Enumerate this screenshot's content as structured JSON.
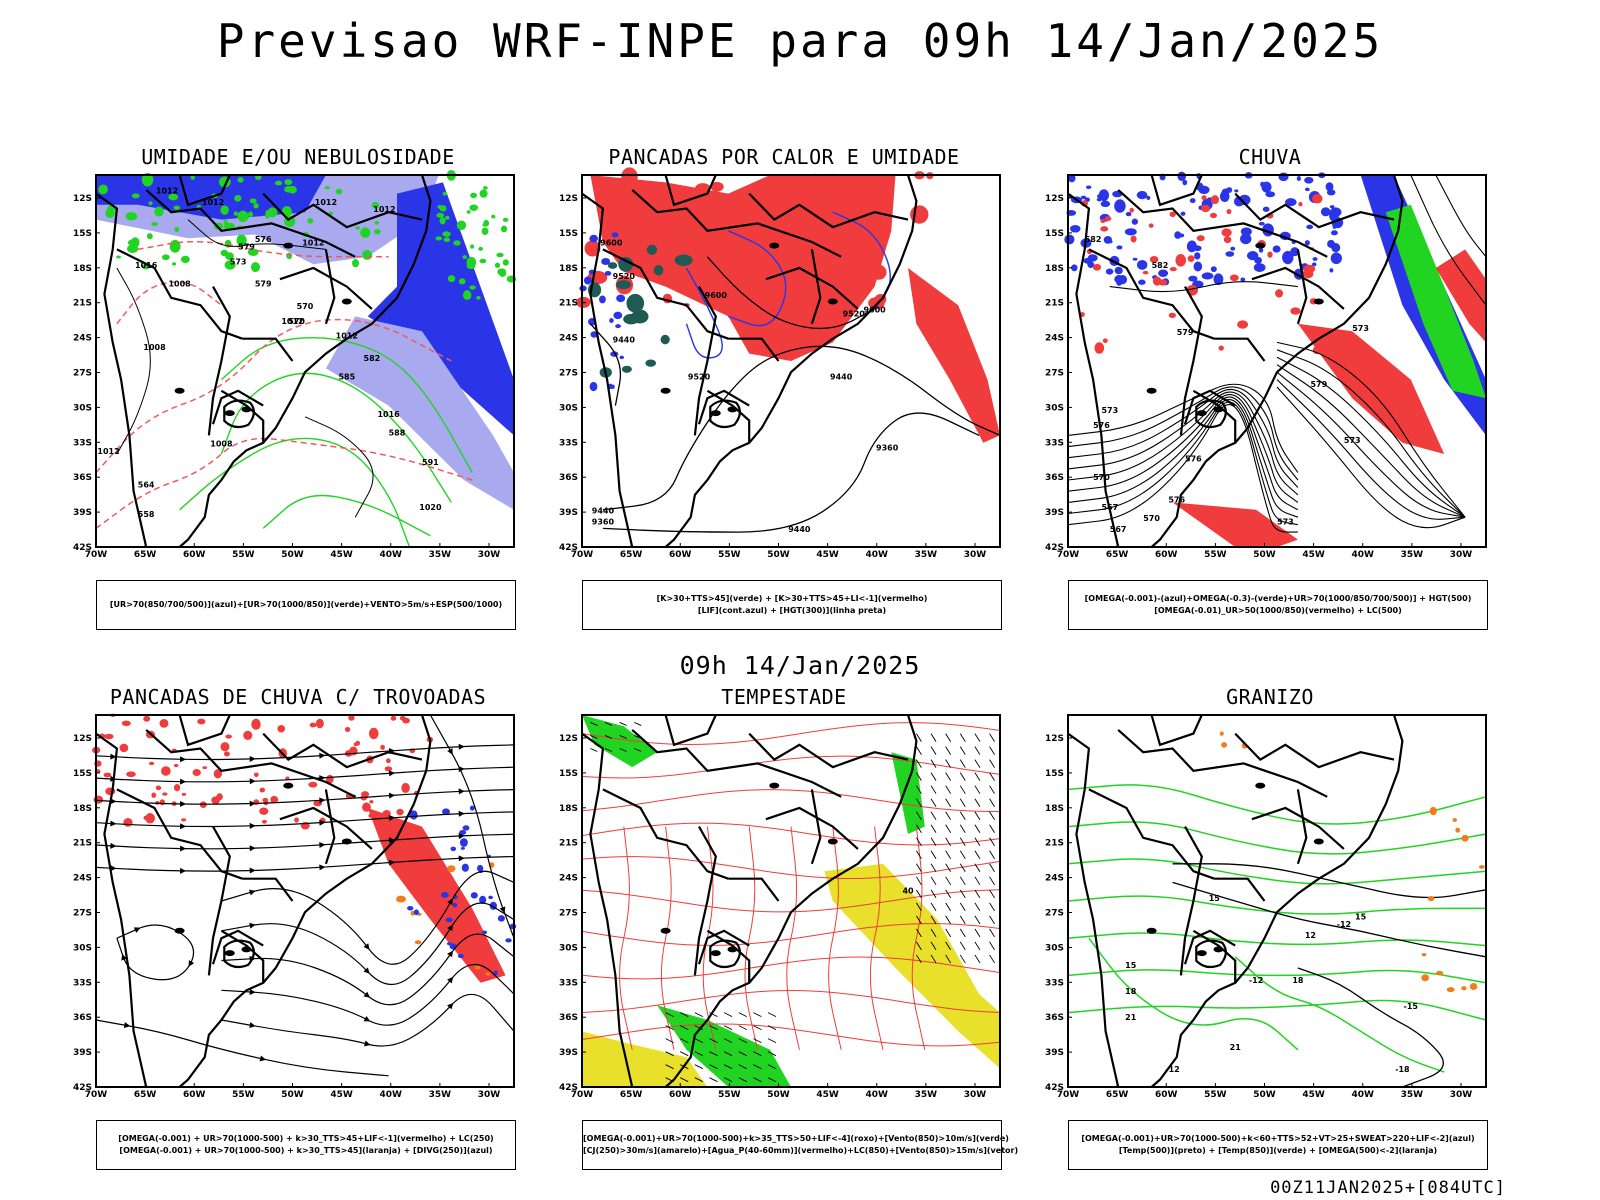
{
  "header": {
    "title": "Previsao WRF-INPE  para 09h 14/Jan/2025"
  },
  "mid_label": "09h 14/Jan/2025",
  "footer": "00Z11JAN2025+[084UTC]",
  "axes": {
    "lat_labels": [
      "12S",
      "15S",
      "18S",
      "21S",
      "24S",
      "27S",
      "30S",
      "33S",
      "36S",
      "39S",
      "42S"
    ],
    "lon_labels": [
      "70W",
      "65W",
      "60W",
      "55W",
      "50W",
      "45W",
      "40W",
      "35W",
      "30W"
    ]
  },
  "colors": {
    "blue": "#2a35e8",
    "lightblue": "#a9a9ef",
    "green": "#22d422",
    "red": "#f03c3c",
    "teal": "#1f5a55",
    "yellow": "#e8e02a",
    "orange": "#f07d1a",
    "pink": "#f05a5a"
  },
  "panels": [
    {
      "id": "umidade",
      "title": "UMIDADE E/OU NEBULOSIDADE",
      "legend": [
        "[UR>70(850/700/500)](azul)+[UR>70(1000/850)](verde)+VENTO>5m/s+ESP(500/1000)"
      ],
      "labels": [
        "1012",
        "1012",
        "1012",
        "1012",
        "1012",
        "1016",
        "1008",
        "1008",
        "1012",
        "1008",
        "1012",
        "1012",
        "1020",
        "1016",
        "579",
        "576",
        "573",
        "570",
        "570",
        "582",
        "585",
        "588",
        "591",
        "579",
        "564",
        "558"
      ]
    },
    {
      "id": "pancadas",
      "title": "PANCADAS POR CALOR E UMIDADE",
      "legend": [
        "[K>30+TTS>45](verde)  +  [K>30+TTS>45+LI<-1](vermelho)",
        "[LIF](cont.azul)  +  [HGT(300)](linha preta)"
      ],
      "labels": [
        "9600",
        "9520",
        "9440",
        "9600",
        "9520",
        "9520",
        "9440",
        "9360",
        "9440",
        "9360",
        "9440",
        "9600"
      ]
    },
    {
      "id": "chuva",
      "title": "CHUVA",
      "legend": [
        "[OMEGA(-0.001)-(azul)+OMEGA(-0.3)-(verde)+UR>70(1000/850/700/500)]  +  HGT(500)",
        "[OMEGA(-0.01)_UR>50(1000/850)(vermelho)  +  LC(500)"
      ],
      "labels": [
        "582",
        "582",
        "579",
        "576",
        "576",
        "579",
        "573",
        "570",
        "567",
        "576",
        "573",
        "567",
        "570",
        "573",
        "573"
      ]
    },
    {
      "id": "trovoadas",
      "title": "PANCADAS DE CHUVA C/ TROVOADAS",
      "legend": [
        "[OMEGA(-0.001)  +  UR>70(1000-500)  +  k>30_TTS>45+LIF<-1](vermelho)  +  LC(250)",
        "[OMEGA(-0.001)  +  UR>70(1000-500)  +  k>30_TTS>45](laranja)  +  [DIVG(250)](azul)"
      ],
      "labels": []
    },
    {
      "id": "tempestade",
      "title": "TEMPESTADE",
      "legend": [
        "[OMEGA(-0.001)+UR>70(1000-500)+k>35_TTS>50+LIF<-4](roxo)+[Vento(850)>10m/s](verde)",
        "[CJ(250)>30m/s](amarelo)+[Agua_P(40-60mm)](vermelho)+LC(850)+[Vento(850)>15m/s](vetor)"
      ],
      "labels": [
        "40"
      ]
    },
    {
      "id": "granizo",
      "title": "GRANIZO",
      "legend": [
        "[OMEGA(-0.001)+UR>70(1000-500)+k<60+TTS>52+VT>25+SWEAT>220+LIF<-2](azul)",
        "[Temp(500)](preto)  +  [Temp(850)](verde)  +  [OMEGA(500)<-2](laranja)"
      ],
      "labels": [
        "-12",
        "-12",
        "-15",
        "-18",
        "-12",
        "15",
        "18",
        "21",
        "15",
        "18",
        "21",
        "12",
        "15"
      ]
    }
  ]
}
